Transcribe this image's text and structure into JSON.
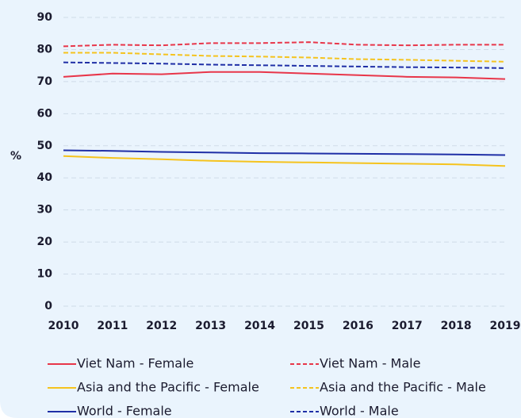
{
  "chart_data": {
    "type": "line",
    "ylabel": "%",
    "x": [
      2010,
      2011,
      2012,
      2013,
      2014,
      2015,
      2016,
      2017,
      2018,
      2019
    ],
    "xlim": [
      2010,
      2019
    ],
    "xticks": [
      2010,
      2011,
      2012,
      2013,
      2014,
      2015,
      2016,
      2017,
      2018,
      2019
    ],
    "ylim": [
      0,
      90
    ],
    "yticks": [
      0,
      10,
      20,
      30,
      40,
      50,
      60,
      70,
      80,
      90
    ],
    "grid": true,
    "legend": "bottom",
    "series": [
      {
        "name": "Viet Nam - Female",
        "color": "#e8364a",
        "linestyle": "solid",
        "values": [
          71.5,
          72.5,
          72.3,
          73,
          73,
          72.5,
          72,
          71.5,
          71.3,
          70.8
        ]
      },
      {
        "name": "Viet Nam - Male",
        "color": "#e8364a",
        "linestyle": "dashed",
        "values": [
          81,
          81.5,
          81.3,
          82,
          82,
          82.3,
          81.5,
          81.3,
          81.5,
          81.5
        ]
      },
      {
        "name": "Asia and the Pacific - Female",
        "color": "#f5c31e",
        "linestyle": "solid",
        "values": [
          46.8,
          46.2,
          45.8,
          45.3,
          45,
          44.8,
          44.6,
          44.4,
          44.2,
          43.7
        ]
      },
      {
        "name": "Asia and the Pacific - Male",
        "color": "#f5c31e",
        "linestyle": "dashed",
        "values": [
          79,
          79,
          78.5,
          78,
          77.8,
          77.5,
          77,
          76.8,
          76.5,
          76.2
        ]
      },
      {
        "name": "World - Female",
        "color": "#1f2fa6",
        "linestyle": "solid",
        "values": [
          48.6,
          48.4,
          48.1,
          47.9,
          47.7,
          47.6,
          47.5,
          47.4,
          47.3,
          47.1
        ]
      },
      {
        "name": "World - Male",
        "color": "#1f2fa6",
        "linestyle": "dashed",
        "values": [
          76,
          75.8,
          75.6,
          75.3,
          75.1,
          74.9,
          74.7,
          74.5,
          74.4,
          74.2
        ]
      }
    ]
  }
}
